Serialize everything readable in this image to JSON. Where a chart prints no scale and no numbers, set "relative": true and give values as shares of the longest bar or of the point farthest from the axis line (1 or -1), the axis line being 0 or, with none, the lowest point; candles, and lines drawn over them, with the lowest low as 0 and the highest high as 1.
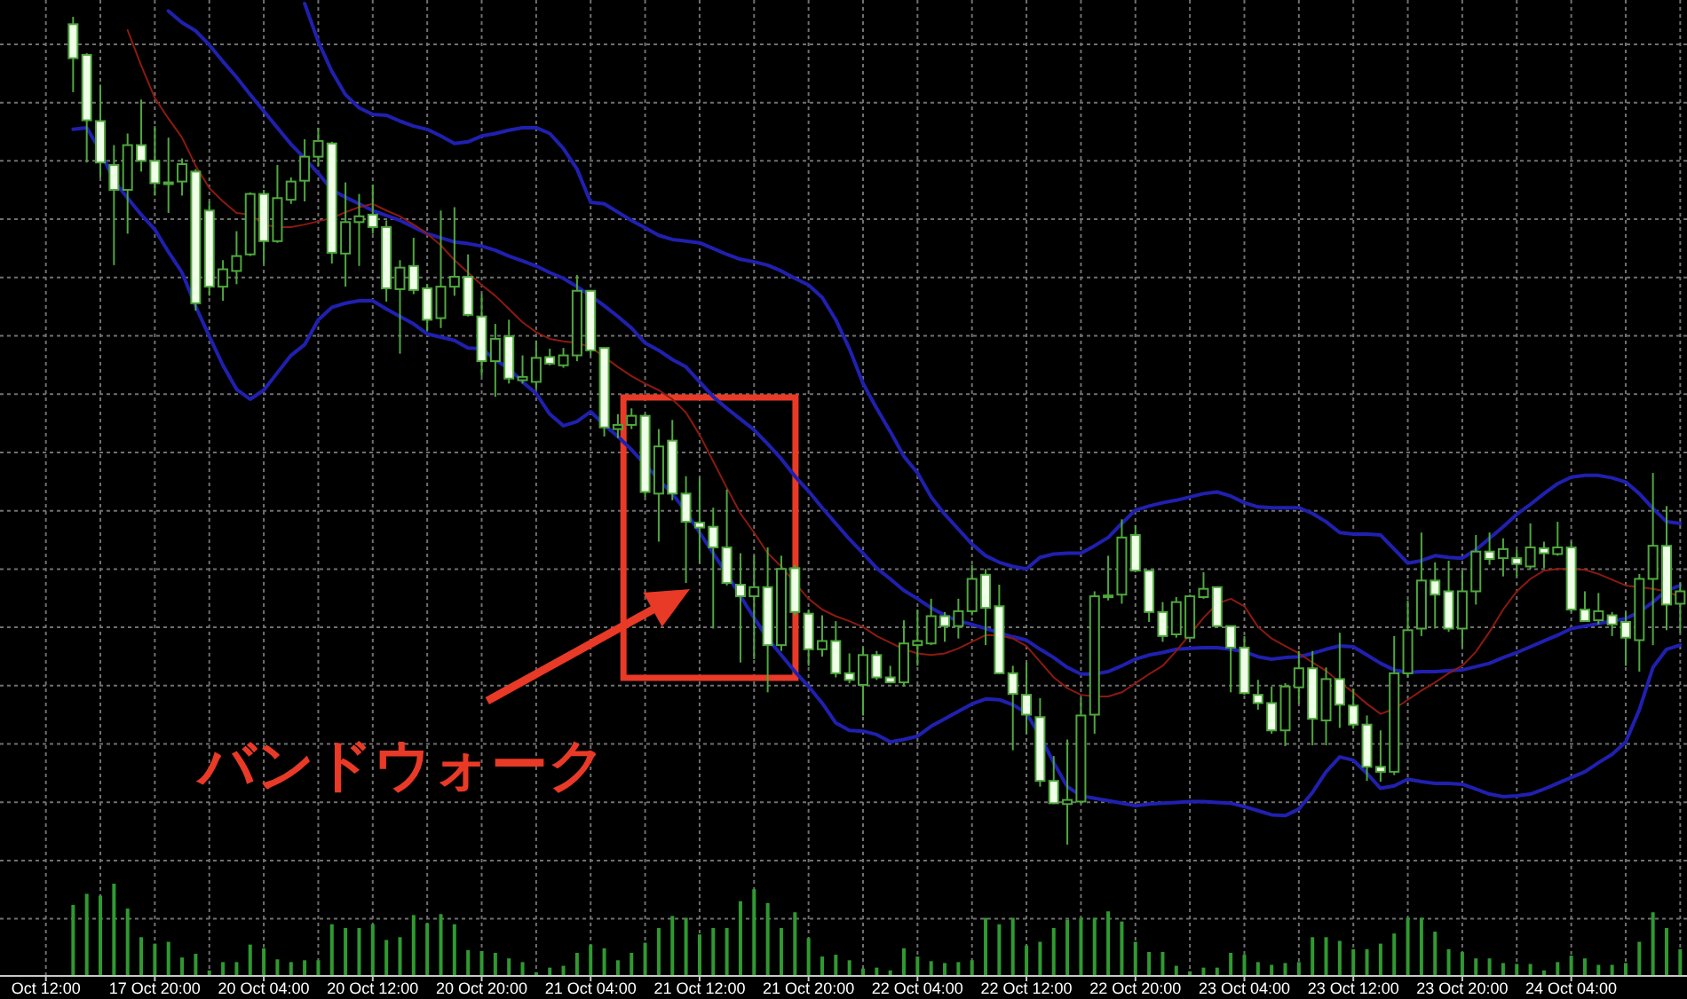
{
  "chart_data": [
    {
      "type": "candlestick",
      "relative": true,
      "grid": true,
      "annotations": [
        "バンドウォーク"
      ],
      "categories": [
        null,
        null,
        null,
        null,
        null,
        null,
        null,
        null,
        null,
        null,
        null,
        null,
        null,
        null,
        null,
        null,
        null,
        null,
        null,
        null,
        null,
        null,
        null,
        null,
        null,
        null,
        null,
        null,
        null,
        null,
        null,
        null,
        null,
        null,
        null,
        null,
        null,
        null,
        null,
        null,
        null,
        null,
        null,
        null,
        null,
        null,
        null,
        null,
        null,
        null,
        null,
        null,
        null,
        null,
        null,
        null,
        null,
        null,
        null,
        null,
        null,
        null,
        null,
        null,
        null,
        null,
        null,
        null,
        null,
        null,
        null,
        null,
        null,
        null,
        null,
        null,
        null,
        null,
        null,
        null,
        null,
        null,
        null,
        null,
        null,
        null,
        null,
        null,
        null,
        null,
        null,
        null,
        null,
        null,
        null,
        null,
        null,
        null,
        null,
        null,
        null,
        null,
        null,
        null,
        null,
        null,
        null,
        null,
        null,
        null,
        null,
        null,
        null,
        null,
        null,
        null,
        null,
        null,
        null,
        null,
        null
      ],
      "series": [
        {
          "type": "line",
          "color": "#2020b0",
          "values": [
            null,
            null,
            null,
            null,
            null,
            null,
            null,
            null,
            null,
            null,
            null,
            null,
            null,
            null,
            null,
            null,
            null,
            null,
            null,
            1.016,
            0.97,
            0.934,
            0.906,
            0.89,
            0.882,
            0.881,
            0.874,
            0.868,
            0.864,
            0.856,
            0.847,
            0.849,
            0.856,
            0.859,
            0.863,
            0.866,
            0.866,
            0.859,
            0.841,
            0.816,
            0.776,
            0.774,
            0.764,
            0.754,
            0.745,
            0.736,
            0.731,
            0.729,
            0.727,
            0.72,
            0.713,
            0.707,
            0.704,
            0.7,
            0.693,
            0.684,
            0.676,
            0.661,
            0.634,
            0.599,
            0.557,
            0.527,
            0.499,
            0.469,
            0.449,
            0.42,
            0.399,
            0.381,
            0.363,
            0.349,
            0.341,
            0.336,
            0.333,
            0.347,
            0.351,
            0.352,
            0.352,
            0.361,
            0.371,
            0.388,
            0.404,
            0.409,
            0.413,
            0.416,
            0.42,
            0.424,
            0.426,
            0.421,
            0.413,
            0.408,
            0.407,
            0.407,
            0.407,
            0.4,
            0.39,
            0.377,
            0.375,
            0.375,
            0.374,
            0.357,
            0.34,
            0.343,
            0.349,
            0.347,
            0.346,
            0.356,
            0.37,
            0.384,
            0.399,
            0.411,
            0.424,
            0.436,
            0.444,
            0.446,
            0.446,
            0.443,
            0.438,
            0.424,
            0.406,
            0.39,
            0.388
          ]
        },
        {
          "type": "line",
          "color": "#2020b0",
          "values": [
            null,
            null,
            null,
            null,
            null,
            null,
            null,
            null,
            null,
            1.007,
            0.993,
            0.983,
            0.966,
            0.946,
            0.927,
            0.906,
            0.886,
            0.866,
            0.846,
            0.829,
            0.811,
            0.791,
            0.782,
            0.774,
            0.766,
            0.76,
            0.754,
            0.746,
            0.738,
            0.733,
            0.728,
            0.726,
            0.723,
            0.718,
            0.711,
            0.705,
            0.699,
            0.691,
            0.684,
            0.674,
            0.663,
            0.651,
            0.638,
            0.624,
            0.606,
            0.597,
            0.586,
            0.577,
            0.559,
            0.541,
            0.527,
            0.514,
            0.501,
            0.484,
            0.466,
            0.445,
            0.427,
            0.407,
            0.388,
            0.369,
            0.352,
            0.334,
            0.321,
            0.307,
            0.297,
            0.286,
            0.277,
            0.27,
            0.266,
            0.261,
            0.256,
            0.251,
            0.247,
            0.236,
            0.226,
            0.214,
            0.206,
            0.206,
            0.209,
            0.216,
            0.224,
            0.229,
            0.232,
            0.236,
            0.237,
            0.238,
            0.238,
            0.236,
            0.233,
            0.227,
            0.224,
            0.226,
            0.227,
            0.231,
            0.236,
            0.24,
            0.239,
            0.229,
            0.219,
            0.211,
            0.208,
            0.209,
            0.209,
            0.21,
            0.211,
            0.215,
            0.219,
            0.226,
            0.232,
            0.239,
            0.246,
            0.253,
            0.261,
            0.264,
            0.267,
            0.27,
            0.273,
            0.281,
            0.293,
            0.307,
            0.313
          ]
        },
        {
          "type": "line",
          "color": "#2020b0",
          "values": [
            null,
            null,
            0.864,
            0.866,
            0.838,
            0.802,
            0.781,
            0.761,
            0.743,
            0.716,
            0.691,
            0.65,
            0.614,
            0.579,
            0.55,
            0.538,
            0.549,
            0.57,
            0.591,
            0.604,
            0.634,
            0.649,
            0.654,
            0.657,
            0.657,
            0.647,
            0.638,
            0.629,
            0.617,
            0.613,
            0.609,
            0.6,
            0.599,
            0.586,
            0.575,
            0.559,
            0.545,
            0.52,
            0.506,
            0.511,
            0.523,
            0.507,
            0.493,
            0.477,
            0.459,
            0.441,
            0.424,
            0.402,
            0.377,
            0.352,
            0.327,
            0.3,
            0.274,
            0.249,
            0.229,
            0.209,
            0.191,
            0.171,
            0.147,
            0.138,
            0.137,
            0.133,
            0.124,
            0.127,
            0.131,
            0.143,
            0.152,
            0.161,
            0.17,
            0.176,
            0.175,
            0.169,
            0.159,
            0.131,
            0.099,
            0.07,
            0.059,
            0.056,
            0.053,
            0.05,
            0.047,
            0.049,
            0.05,
            0.051,
            0.052,
            0.052,
            0.051,
            0.05,
            0.046,
            0.041,
            0.036,
            0.035,
            0.043,
            0.063,
            0.088,
            0.106,
            0.102,
            0.086,
            0.068,
            0.071,
            0.079,
            0.076,
            0.074,
            0.074,
            0.073,
            0.067,
            0.061,
            0.058,
            0.059,
            0.061,
            0.067,
            0.074,
            0.081,
            0.088,
            0.099,
            0.109,
            0.124,
            0.163,
            0.214,
            0.236,
            0.241
          ]
        },
        {
          "type": "line",
          "color": "#8c1a10",
          "values": [
            null,
            null,
            null,
            null,
            null,
            null,
            0.984,
            0.941,
            0.902,
            0.877,
            0.854,
            0.82,
            0.793,
            0.777,
            0.763,
            0.761,
            0.749,
            0.746,
            0.746,
            0.749,
            0.753,
            0.757,
            0.764,
            0.77,
            0.774,
            0.766,
            0.759,
            0.749,
            0.738,
            0.724,
            0.706,
            0.691,
            0.676,
            0.663,
            0.647,
            0.631,
            0.619,
            0.611,
            0.608,
            0.606,
            0.601,
            0.589,
            0.577,
            0.566,
            0.557,
            0.549,
            0.538,
            0.522,
            0.495,
            0.463,
            0.431,
            0.4,
            0.377,
            0.352,
            0.336,
            0.316,
            0.297,
            0.284,
            0.276,
            0.27,
            0.263,
            0.252,
            0.244,
            0.236,
            0.231,
            0.229,
            0.231,
            0.237,
            0.245,
            0.253,
            0.253,
            0.249,
            0.24,
            0.221,
            0.202,
            0.189,
            0.181,
            0.179,
            0.179,
            0.184,
            0.195,
            0.206,
            0.216,
            0.234,
            0.254,
            0.274,
            0.291,
            0.297,
            0.288,
            0.263,
            0.249,
            0.24,
            0.231,
            0.22,
            0.21,
            0.196,
            0.184,
            0.17,
            0.158,
            0.164,
            0.175,
            0.186,
            0.196,
            0.207,
            0.216,
            0.233,
            0.257,
            0.284,
            0.306,
            0.321,
            0.331,
            0.333,
            0.333,
            0.332,
            0.327,
            0.32,
            0.313,
            0.311,
            0.309,
            0.306,
            0.299
          ]
        },
        {
          "type": "candlestick",
          "color": "#4fa83d",
          "colors": [
            null,
            null,
            "#f0ffe8",
            "#f0ffe8",
            "#f0ffe8",
            "#f0ffe8",
            "#000000",
            "#f0ffe8",
            "#f0ffe8",
            "#000000",
            "#000000",
            "#f0ffe8",
            "#f0ffe8",
            "#000000",
            "#000000",
            "#000000",
            "#f0ffe8",
            "#000000",
            "#000000",
            "#000000",
            "#000000",
            "#f0ffe8",
            "#000000",
            "#000000",
            "#f0ffe8",
            "#f0ffe8",
            "#000000",
            "#f0ffe8",
            "#f0ffe8",
            "#000000",
            "#000000",
            "#f0ffe8",
            "#f0ffe8",
            "#000000",
            "#f0ffe8",
            "#000000",
            "#000000",
            "#f0ffe8",
            "#000000",
            "#000000",
            "#f0ffe8",
            "#f0ffe8",
            "#000000",
            "#000000",
            "#f0ffe8",
            "#000000",
            "#f0ffe8",
            "#f0ffe8",
            "#f0ffe8",
            "#f0ffe8",
            "#f0ffe8",
            "#f0ffe8",
            "#000000",
            "#f0ffe8",
            "#000000",
            "#f0ffe8",
            "#f0ffe8",
            "#000000",
            "#f0ffe8",
            "#f0ffe8",
            "#000000",
            "#f0ffe8",
            "#f0ffe8",
            "#000000",
            "#000000",
            "#000000",
            "#f0ffe8",
            "#000000",
            "#000000",
            "#f0ffe8",
            "#f0ffe8",
            "#f0ffe8",
            "#f0ffe8",
            "#f0ffe8",
            "#f0ffe8",
            "#000000",
            "#000000",
            "#000000",
            "#000000",
            "#000000",
            "#f0ffe8",
            "#f0ffe8",
            "#f0ffe8",
            "#000000",
            "#000000",
            "#000000",
            "#f0ffe8",
            "#f0ffe8",
            "#f0ffe8",
            "#f0ffe8",
            "#f0ffe8",
            "#000000",
            "#000000",
            "#f0ffe8",
            "#000000",
            "#f0ffe8",
            "#f0ffe8",
            "#f0ffe8",
            "#f0ffe8",
            "#000000",
            "#000000",
            "#000000",
            "#f0ffe8",
            "#f0ffe8",
            "#000000",
            "#000000",
            "#f0ffe8",
            "#000000",
            "#f0ffe8",
            "#000000",
            "#f0ffe8",
            "#000000",
            "#f0ffe8",
            "#f0ffe8",
            "#000000",
            "#f0ffe8",
            "#f0ffe8",
            "#000000",
            "#000000",
            "#f0ffe8",
            "#000000"
          ],
          "ohlc": [
            null,
            null,
            [
              0.991,
              1.0,
              0.909,
              0.95
            ],
            [
              0.954,
              0.956,
              0.824,
              0.875
            ],
            [
              0.874,
              0.918,
              0.806,
              0.824
            ],
            [
              0.821,
              0.845,
              0.7,
              0.791
            ],
            [
              0.791,
              0.859,
              0.738,
              0.845
            ],
            [
              0.845,
              0.9,
              0.813,
              0.826
            ],
            [
              0.826,
              0.868,
              0.784,
              0.799
            ],
            [
              0.8,
              0.854,
              0.763,
              0.8
            ],
            [
              0.801,
              0.829,
              0.784,
              0.822
            ],
            [
              0.813,
              0.816,
              0.645,
              0.654
            ],
            [
              0.766,
              0.777,
              0.663,
              0.674
            ],
            [
              0.674,
              0.706,
              0.657,
              0.695
            ],
            [
              0.693,
              0.741,
              0.677,
              0.711
            ],
            [
              0.713,
              0.788,
              0.711,
              0.786
            ],
            [
              0.786,
              0.791,
              0.702,
              0.729
            ],
            [
              0.729,
              0.821,
              0.727,
              0.781
            ],
            [
              0.779,
              0.806,
              0.774,
              0.801
            ],
            [
              0.802,
              0.852,
              0.777,
              0.831
            ],
            [
              0.831,
              0.866,
              0.82,
              0.85
            ],
            [
              0.847,
              0.849,
              0.702,
              0.715
            ],
            [
              0.714,
              0.8,
              0.674,
              0.752
            ],
            [
              0.752,
              0.786,
              0.699,
              0.759
            ],
            [
              0.761,
              0.797,
              0.738,
              0.746
            ],
            [
              0.746,
              0.754,
              0.656,
              0.672
            ],
            [
              0.671,
              0.706,
              0.593,
              0.697
            ],
            [
              0.699,
              0.733,
              0.665,
              0.67
            ],
            [
              0.672,
              0.677,
              0.62,
              0.634
            ],
            [
              0.636,
              0.766,
              0.624,
              0.674
            ],
            [
              0.674,
              0.77,
              0.663,
              0.686
            ],
            [
              0.686,
              0.713,
              0.638,
              0.64
            ],
            [
              0.638,
              0.665,
              0.566,
              0.584
            ],
            [
              0.584,
              0.629,
              0.541,
              0.611
            ],
            [
              0.614,
              0.634,
              0.557,
              0.563
            ],
            [
              0.561,
              0.591,
              0.557,
              0.565
            ],
            [
              0.559,
              0.609,
              0.549,
              0.588
            ],
            [
              0.589,
              0.599,
              0.579,
              0.581
            ],
            [
              0.579,
              0.6,
              0.576,
              0.591
            ],
            [
              0.591,
              0.688,
              0.584,
              0.669
            ],
            [
              0.669,
              0.67,
              0.591,
              0.597
            ],
            [
              0.6,
              0.6,
              0.493,
              0.504
            ],
            [
              0.502,
              0.52,
              0.491,
              0.507
            ],
            [
              0.507,
              0.527,
              0.502,
              0.518
            ],
            [
              0.518,
              0.52,
              0.42,
              0.426
            ],
            [
              0.424,
              0.502,
              0.366,
              0.481
            ],
            [
              0.488,
              0.513,
              0.416,
              0.424
            ],
            [
              0.424,
              0.445,
              0.316,
              0.39
            ],
            [
              0.389,
              0.443,
              0.34,
              0.383
            ],
            [
              0.384,
              0.407,
              0.261,
              0.359
            ],
            [
              0.359,
              0.429,
              0.313,
              0.316
            ],
            [
              0.314,
              0.352,
              0.22,
              0.3
            ],
            [
              0.3,
              0.349,
              0.224,
              0.311
            ],
            [
              0.311,
              0.359,
              0.184,
              0.241
            ],
            [
              0.241,
              0.349,
              0.234,
              0.333
            ],
            [
              0.334,
              0.338,
              0.277,
              0.281
            ],
            [
              0.279,
              0.284,
              0.216,
              0.236
            ],
            [
              0.236,
              0.277,
              0.227,
              0.246
            ],
            [
              0.246,
              0.27,
              0.202,
              0.207
            ],
            [
              0.207,
              0.231,
              0.195,
              0.199
            ],
            [
              0.193,
              0.238,
              0.156,
              0.229
            ],
            [
              0.229,
              0.234,
              0.199,
              0.202
            ],
            [
              0.202,
              0.216,
              0.195,
              0.196
            ],
            [
              0.196,
              0.271,
              0.191,
              0.243
            ],
            [
              0.241,
              0.284,
              0.216,
              0.246
            ],
            [
              0.243,
              0.297,
              0.241,
              0.276
            ],
            [
              0.276,
              0.281,
              0.245,
              0.264
            ],
            [
              0.264,
              0.297,
              0.249,
              0.282
            ],
            [
              0.282,
              0.338,
              0.277,
              0.321
            ],
            [
              0.326,
              0.333,
              0.241,
              0.286
            ],
            [
              0.288,
              0.314,
              0.206,
              0.207
            ],
            [
              0.207,
              0.216,
              0.114,
              0.182
            ],
            [
              0.181,
              0.22,
              0.134,
              0.157
            ],
            [
              0.154,
              0.177,
              0.07,
              0.077
            ],
            [
              0.077,
              0.107,
              0.049,
              0.05
            ],
            [
              0.049,
              0.127,
              0.0,
              0.054
            ],
            [
              0.052,
              0.177,
              0.05,
              0.156
            ],
            [
              0.157,
              0.306,
              0.134,
              0.3
            ],
            [
              0.299,
              0.349,
              0.295,
              0.301
            ],
            [
              0.302,
              0.393,
              0.291,
              0.371
            ],
            [
              0.374,
              0.386,
              0.329,
              0.331
            ],
            [
              0.331,
              0.331,
              0.269,
              0.281
            ],
            [
              0.281,
              0.293,
              0.245,
              0.252
            ],
            [
              0.254,
              0.299,
              0.25,
              0.293
            ],
            [
              0.25,
              0.302,
              0.249,
              0.3
            ],
            [
              0.299,
              0.329,
              0.297,
              0.309
            ],
            [
              0.311,
              0.311,
              0.263,
              0.264
            ],
            [
              0.264,
              0.264,
              0.184,
              0.238
            ],
            [
              0.238,
              0.252,
              0.181,
              0.183
            ],
            [
              0.181,
              0.199,
              0.163,
              0.171
            ],
            [
              0.171,
              0.191,
              0.134,
              0.138
            ],
            [
              0.138,
              0.195,
              0.119,
              0.191
            ],
            [
              0.19,
              0.234,
              0.17,
              0.213
            ],
            [
              0.213,
              0.234,
              0.12,
              0.152
            ],
            [
              0.15,
              0.214,
              0.12,
              0.2
            ],
            [
              0.2,
              0.256,
              0.141,
              0.169
            ],
            [
              0.168,
              0.188,
              0.14,
              0.145
            ],
            [
              0.145,
              0.156,
              0.077,
              0.094
            ],
            [
              0.094,
              0.138,
              0.076,
              0.088
            ],
            [
              0.088,
              0.252,
              0.084,
              0.207
            ],
            [
              0.207,
              0.295,
              0.202,
              0.259
            ],
            [
              0.261,
              0.377,
              0.252,
              0.319
            ],
            [
              0.319,
              0.341,
              0.261,
              0.302
            ],
            [
              0.306,
              0.343,
              0.257,
              0.261
            ],
            [
              0.261,
              0.331,
              0.238,
              0.306
            ],
            [
              0.306,
              0.374,
              0.29,
              0.354
            ],
            [
              0.354,
              0.377,
              0.338,
              0.345
            ],
            [
              0.346,
              0.37,
              0.324,
              0.357
            ],
            [
              0.346,
              0.356,
              0.324,
              0.339
            ],
            [
              0.336,
              0.388,
              0.333,
              0.359
            ],
            [
              0.358,
              0.366,
              0.334,
              0.352
            ],
            [
              0.351,
              0.39,
              0.349,
              0.359
            ],
            [
              0.359,
              0.366,
              0.281,
              0.284
            ],
            [
              0.284,
              0.306,
              0.269,
              0.27
            ],
            [
              0.271,
              0.304,
              0.266,
              0.282
            ],
            [
              0.277,
              0.281,
              0.252,
              0.266
            ],
            [
              0.269,
              0.281,
              0.216,
              0.25
            ],
            [
              0.247,
              0.327,
              0.209,
              0.321
            ],
            [
              0.321,
              0.449,
              0.241,
              0.361
            ],
            [
              0.361,
              0.409,
              0.259,
              0.29
            ],
            [
              0.291,
              0.316,
              0.256,
              0.306
            ]
          ]
        }
      ]
    },
    {
      "type": "bar",
      "relative": true,
      "tick_labels": "x",
      "grid": true,
      "color": "#2f9a30",
      "categories": [
        "Oct 12:00",
        null,
        null,
        null,
        null,
        null,
        null,
        null,
        "17 Oct 20:00",
        null,
        null,
        null,
        null,
        null,
        null,
        null,
        "20 Oct 04:00",
        null,
        null,
        null,
        null,
        null,
        null,
        null,
        "20 Oct 12:00",
        null,
        null,
        null,
        null,
        null,
        null,
        null,
        "20 Oct 20:00",
        null,
        null,
        null,
        null,
        null,
        null,
        null,
        "21 Oct 04:00",
        null,
        null,
        null,
        null,
        null,
        null,
        null,
        "21 Oct 12:00",
        null,
        null,
        null,
        null,
        null,
        null,
        null,
        "21 Oct 20:00",
        null,
        null,
        null,
        null,
        null,
        null,
        null,
        "22 Oct 04:00",
        null,
        null,
        null,
        null,
        null,
        null,
        null,
        "22 Oct 12:00",
        null,
        null,
        null,
        null,
        null,
        null,
        null,
        "22 Oct 20:00",
        null,
        null,
        null,
        null,
        null,
        null,
        null,
        "23 Oct 04:00",
        null,
        null,
        null,
        null,
        null,
        null,
        null,
        "23 Oct 12:00",
        null,
        null,
        null,
        null,
        null,
        null,
        null,
        "23 Oct 20:00",
        null,
        null,
        null,
        null,
        null,
        null,
        null,
        "24 Oct 04:00",
        null,
        null,
        null,
        null,
        null,
        null,
        null,
        null
      ],
      "values": [
        null,
        null,
        0.77,
        0.89,
        0.87,
        1,
        0.73,
        0.42,
        0.35,
        0.37,
        0.2,
        0.24,
        0.06,
        0.15,
        0.15,
        0.34,
        0.3,
        0.18,
        0.15,
        0.17,
        0.17,
        0.56,
        0.52,
        0.52,
        0.56,
        0.39,
        0.42,
        0.66,
        0.57,
        0.67,
        0.56,
        0.28,
        0.27,
        0.25,
        0.19,
        0.15,
        0.04,
        0.09,
        0.11,
        0.25,
        0.34,
        0.3,
        0.17,
        0.25,
        0.36,
        0.52,
        0.65,
        0.63,
        0.45,
        0.52,
        0.52,
        0.81,
        0.94,
        0.79,
        0.52,
        0.69,
        0.41,
        0.21,
        0.23,
        0.17,
        0.08,
        0.09,
        0.06,
        0.3,
        0.21,
        0.16,
        0.14,
        0.15,
        0.17,
        0.63,
        0.56,
        0.63,
        0.33,
        0.37,
        0.52,
        0.61,
        0.63,
        0.63,
        0.7,
        0.59,
        0.37,
        0.26,
        0.26,
        0.11,
        0.05,
        0.09,
        0.09,
        0.25,
        0.23,
        0.15,
        0.12,
        0.14,
        0.15,
        0.42,
        0.42,
        0.38,
        0.29,
        0.29,
        0.35,
        0.46,
        0.63,
        0.63,
        0.48,
        0.29,
        0.26,
        0.19,
        0.19,
        0.14,
        0.13,
        0.13,
        0.06,
        0.15,
        0.22,
        0.19,
        0.12,
        0.12,
        0.14,
        0.37,
        0.69,
        0.52,
        0.29
      ]
    }
  ]
}
